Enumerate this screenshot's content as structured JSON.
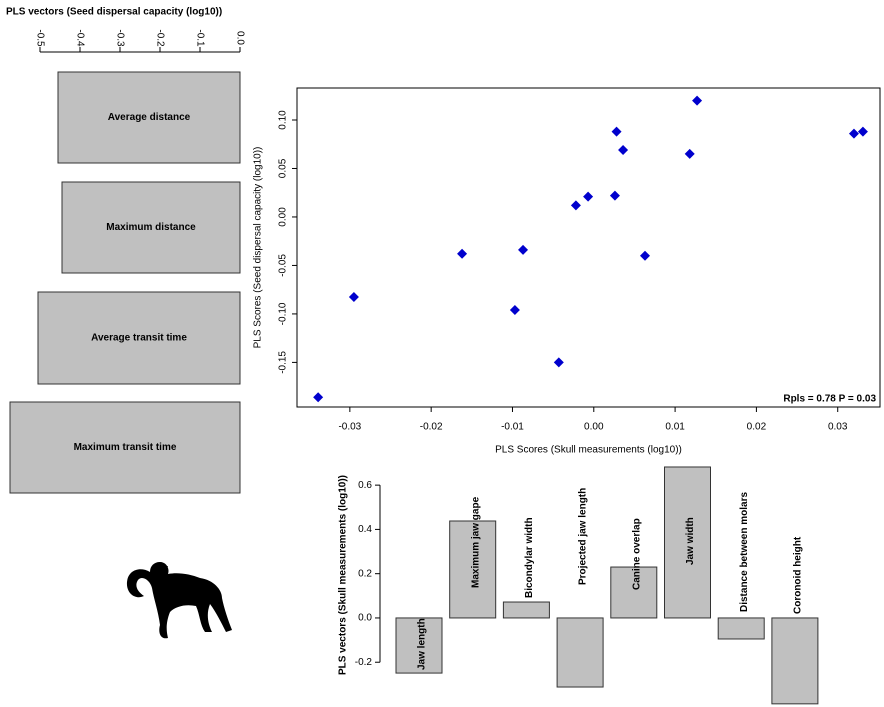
{
  "chart_data": [
    {
      "type": "barh",
      "title": "PLS vectors (Seed dispersal capacity (log10))",
      "categories": [
        "Average distance",
        "Maximum distance",
        "Average transit time",
        "Maximum transit time"
      ],
      "values": [
        -0.455,
        -0.445,
        -0.505,
        -0.575
      ],
      "color": "#c0c0c0",
      "xlim": [
        -0.58,
        0
      ],
      "xticks": [
        -0.5,
        -0.4,
        -0.3,
        -0.2,
        -0.1,
        {
          "value": 0,
          "label": "0.0"
        }
      ]
    },
    {
      "type": "scatter",
      "x_label": "PLS Scores (Skull measurements (log10))",
      "y_label": "PLS Scores (Seed dispersal capacity (log10))",
      "annotation": "Rpls = 0.78  P = 0.03",
      "color": "#0000cd",
      "x": [
        -0.0339,
        -0.0295,
        -0.0162,
        -0.0097,
        -0.0087,
        -0.0043,
        -0.0022,
        -0.0007,
        0.0026,
        0.0028,
        0.0036,
        0.0063,
        0.0118,
        0.0127,
        0.032,
        0.0331
      ],
      "values": [
        -0.186,
        -0.0826,
        -0.038,
        -0.096,
        -0.034,
        -0.15,
        0.012,
        0.021,
        0.022,
        0.088,
        0.069,
        -0.04,
        0.065,
        0.12,
        0.086,
        0.088
      ],
      "xlim": [
        -0.0365,
        0.0352
      ],
      "ylim": [
        -0.196,
        0.133
      ],
      "xticks": [
        -0.03,
        -0.02,
        -0.01,
        {
          "value": 0,
          "label": "0.00"
        },
        0.01,
        0.02,
        0.03
      ],
      "yticks": [
        -0.15,
        {
          "value": -0.1,
          "label": "-0.10"
        },
        -0.05,
        {
          "value": 0,
          "label": "0.00"
        },
        0.05,
        {
          "value": 0.1,
          "label": "0.10"
        }
      ]
    },
    {
      "type": "bar",
      "y_label": "PLS vectors (Skull measurements (log10))",
      "categories": [
        "Jaw length",
        "Maximum jaw gape",
        "Bicondylar width",
        "Projected jaw length",
        "Canine overlap",
        "Jaw width",
        "Distance between molars",
        "Coronoid height"
      ],
      "values": [
        -0.249,
        0.438,
        0.072,
        -0.312,
        0.23,
        0.682,
        -0.095,
        -0.388
      ],
      "color": "#c0c0c0",
      "ylim": [
        -0.4,
        0.7
      ],
      "yticks": [
        -0.2,
        {
          "value": 0,
          "label": "0.0"
        },
        0.2,
        0.4,
        0.6
      ]
    }
  ]
}
